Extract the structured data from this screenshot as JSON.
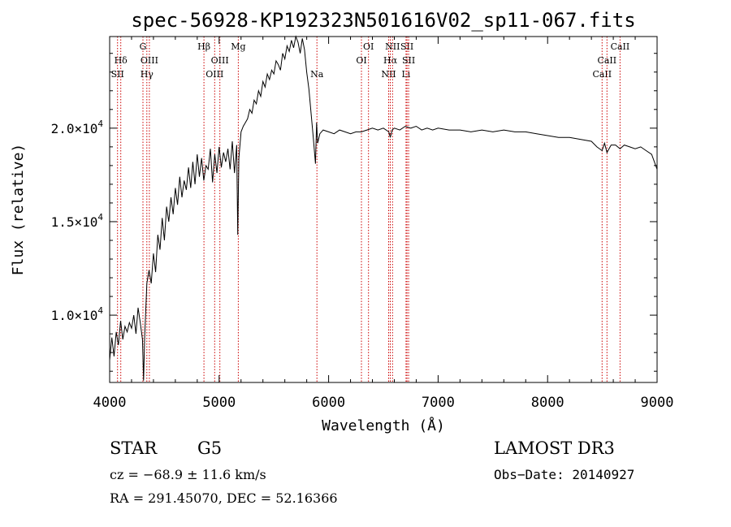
{
  "chart_data": {
    "type": "line",
    "title": "spec-56928-KP192323N501616V02_sp11-067.fits",
    "xlabel": "Wavelength (Å)",
    "ylabel": "Flux (relative)",
    "xlim": [
      4000,
      9000
    ],
    "ylim": [
      6400,
      24900
    ],
    "x_ticks": [
      4000,
      5000,
      6000,
      7000,
      8000,
      9000
    ],
    "x_tick_labels": [
      "4000",
      "5000",
      "6000",
      "7000",
      "8000",
      "9000"
    ],
    "y_ticks": [
      10000,
      15000,
      20000
    ],
    "y_tick_labels": [
      {
        "mantissa": "1.0×10",
        "exp": "4"
      },
      {
        "mantissa": "1.5×10",
        "exp": "4"
      },
      {
        "mantissa": "2.0×10",
        "exp": "4"
      }
    ],
    "grid": false,
    "series": [
      {
        "name": "spectrum",
        "x": [
          4000,
          4020,
          4040,
          4060,
          4080,
          4100,
          4120,
          4140,
          4160,
          4180,
          4200,
          4220,
          4240,
          4260,
          4280,
          4300,
          4310,
          4320,
          4340,
          4360,
          4380,
          4400,
          4420,
          4440,
          4460,
          4480,
          4500,
          4520,
          4540,
          4560,
          4580,
          4600,
          4620,
          4640,
          4660,
          4680,
          4700,
          4720,
          4740,
          4760,
          4780,
          4800,
          4820,
          4840,
          4860,
          4880,
          4900,
          4920,
          4940,
          4960,
          4980,
          5000,
          5020,
          5040,
          5060,
          5080,
          5100,
          5120,
          5140,
          5160,
          5170,
          5180,
          5200,
          5220,
          5240,
          5260,
          5280,
          5300,
          5320,
          5340,
          5360,
          5380,
          5400,
          5420,
          5440,
          5460,
          5480,
          5500,
          5520,
          5540,
          5560,
          5580,
          5600,
          5620,
          5640,
          5660,
          5680,
          5700,
          5720,
          5740,
          5760,
          5780,
          5800,
          5820,
          5840,
          5860,
          5880,
          5890,
          5900,
          5920,
          5950,
          6000,
          6050,
          6100,
          6150,
          6200,
          6250,
          6300,
          6350,
          6400,
          6450,
          6500,
          6550,
          6563,
          6580,
          6600,
          6650,
          6700,
          6750,
          6800,
          6850,
          6900,
          6950,
          7000,
          7100,
          7200,
          7300,
          7400,
          7500,
          7600,
          7700,
          7800,
          7900,
          8000,
          8100,
          8200,
          8300,
          8400,
          8450,
          8498,
          8520,
          8542,
          8580,
          8620,
          8662,
          8700,
          8750,
          8800,
          8850,
          8900,
          8950,
          9000
        ],
        "values": [
          7600,
          8800,
          7800,
          9100,
          8400,
          9700,
          8700,
          9400,
          9100,
          9600,
          9300,
          10000,
          9000,
          10400,
          9600,
          8700,
          6500,
          8800,
          11700,
          12400,
          11700,
          13300,
          12300,
          14300,
          13500,
          15200,
          14000,
          15800,
          15000,
          16300,
          15400,
          16800,
          15900,
          17400,
          16300,
          17200,
          16700,
          17900,
          16800,
          18200,
          17000,
          18600,
          17400,
          18400,
          17200,
          18000,
          17800,
          18900,
          17100,
          18600,
          17600,
          19000,
          17900,
          18700,
          18200,
          18900,
          17800,
          19300,
          17600,
          19100,
          14300,
          18400,
          19800,
          20100,
          20300,
          20500,
          21000,
          20800,
          21500,
          21300,
          22000,
          21700,
          22500,
          22200,
          22900,
          22600,
          23100,
          22900,
          23600,
          23400,
          23100,
          24000,
          23700,
          24400,
          24100,
          24700,
          24300,
          25000,
          24600,
          24000,
          24800,
          24200,
          23000,
          22100,
          20800,
          19500,
          18100,
          20300,
          19200,
          19700,
          19900,
          19800,
          19700,
          19900,
          19800,
          19700,
          19800,
          19800,
          19900,
          20000,
          19900,
          20000,
          19800,
          19500,
          19900,
          20000,
          19900,
          20100,
          20000,
          20100,
          19900,
          20000,
          19900,
          20000,
          19900,
          19900,
          19800,
          19900,
          19800,
          19900,
          19800,
          19800,
          19700,
          19600,
          19500,
          19500,
          19400,
          19300,
          19000,
          18800,
          19200,
          18700,
          19100,
          19100,
          18900,
          19100,
          19000,
          18900,
          19000,
          18800,
          18600,
          17800
        ]
      }
    ],
    "line_markers": [
      {
        "x": 4102,
        "label": "Hδ",
        "row": 2
      },
      {
        "x": 4072,
        "label": "SII",
        "row": 3
      },
      {
        "x": 4304,
        "label": "G",
        "row": 1
      },
      {
        "x": 4340,
        "label": "Hγ",
        "row": 3
      },
      {
        "x": 4363,
        "label": "OIII",
        "row": 2
      },
      {
        "x": 4861,
        "label": "Hβ",
        "row": 1
      },
      {
        "x": 4959,
        "label": "OIII",
        "row": 3
      },
      {
        "x": 5007,
        "label": "OIII",
        "row": 2
      },
      {
        "x": 5175,
        "label": "Mg",
        "row": 1
      },
      {
        "x": 5893,
        "label": "Na",
        "row": 3
      },
      {
        "x": 6300,
        "label": "OI",
        "row": 2
      },
      {
        "x": 6364,
        "label": "OI",
        "row": 1
      },
      {
        "x": 6548,
        "label": "NII",
        "row": 3
      },
      {
        "x": 6563,
        "label": "Hα",
        "row": 2
      },
      {
        "x": 6584,
        "label": "NII",
        "row": 1
      },
      {
        "x": 6707,
        "label": "Li",
        "row": 3
      },
      {
        "x": 6716,
        "label": "SII",
        "row": 1
      },
      {
        "x": 6731,
        "label": "SII",
        "row": 2
      },
      {
        "x": 8498,
        "label": "CaII",
        "row": 3
      },
      {
        "x": 8542,
        "label": "CaII",
        "row": 2
      },
      {
        "x": 8662,
        "label": "CaII",
        "row": 1
      }
    ],
    "marker_color": "#cc0000"
  },
  "info": {
    "class": "STAR",
    "subclass": "G5",
    "survey": "LAMOST DR3",
    "cz": "cz = −68.9 ± 11.6 km/s",
    "obs_date": "Obs−Date: 20140927",
    "coords": "RA = 291.45070, DEC =  52.16366"
  }
}
